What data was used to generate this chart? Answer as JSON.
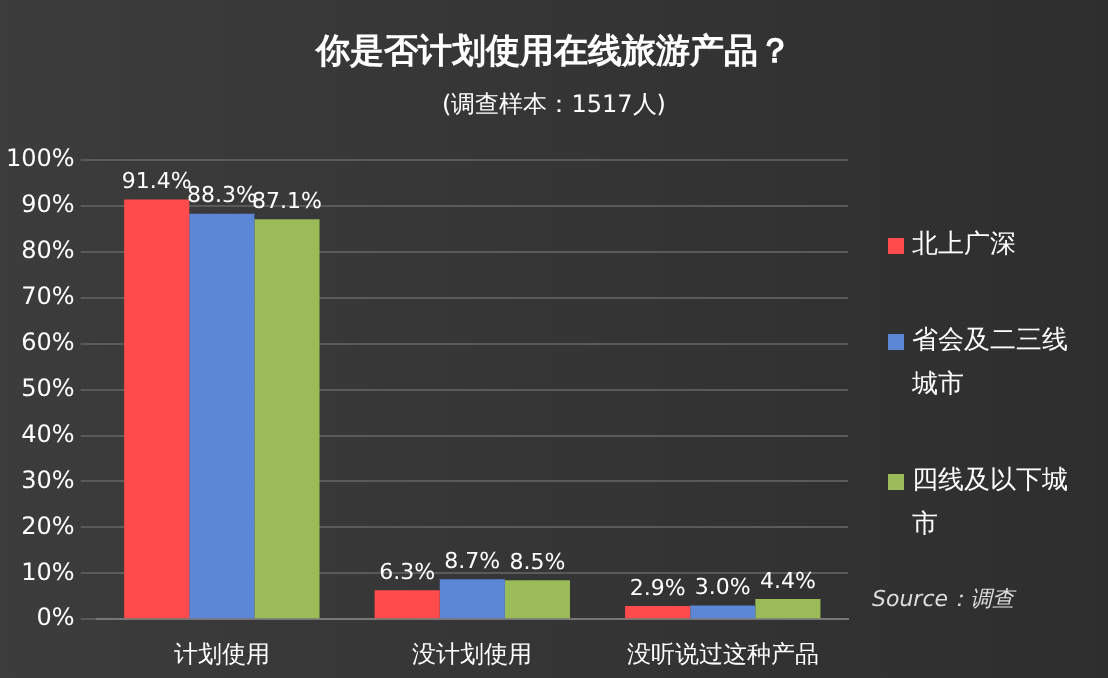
{
  "chart_data": {
    "type": "bar",
    "title": "你是否计划使用在线旅游产品？",
    "subtitle": "(调查样本：1517人)",
    "categories": [
      "计划使用",
      "没计划使用",
      "没听说过这种产品"
    ],
    "series": [
      {
        "name": "北上广深",
        "color": "#ff4b4b",
        "values": [
          91.4,
          6.3,
          2.9
        ],
        "value_labels": [
          "91.4%",
          "6.3%",
          "2.9%"
        ]
      },
      {
        "name": "省会及二三线城市",
        "color": "#5b87d6",
        "values": [
          88.3,
          8.7,
          3.0
        ],
        "value_labels": [
          "88.3%",
          "8.7%",
          "3.0%"
        ]
      },
      {
        "name": "四线及以下城市",
        "color": "#9bbb59",
        "values": [
          87.1,
          8.5,
          4.4
        ],
        "value_labels": [
          "87.1%",
          "8.5%",
          "4.4%"
        ]
      }
    ],
    "ylim": [
      0,
      100
    ],
    "yticks": [
      {
        "value": 0,
        "label": "0%"
      },
      {
        "value": 10,
        "label": "10%"
      },
      {
        "value": 20,
        "label": "20%"
      },
      {
        "value": 30,
        "label": "30%"
      },
      {
        "value": 40,
        "label": "40%"
      },
      {
        "value": 50,
        "label": "50%"
      },
      {
        "value": 60,
        "label": "60%"
      },
      {
        "value": 70,
        "label": "70%"
      },
      {
        "value": 80,
        "label": "80%"
      },
      {
        "value": 90,
        "label": "90%"
      },
      {
        "value": 100,
        "label": "100%"
      }
    ],
    "grid": "y",
    "legend": "right",
    "annotations": [
      "Source：调查"
    ]
  }
}
